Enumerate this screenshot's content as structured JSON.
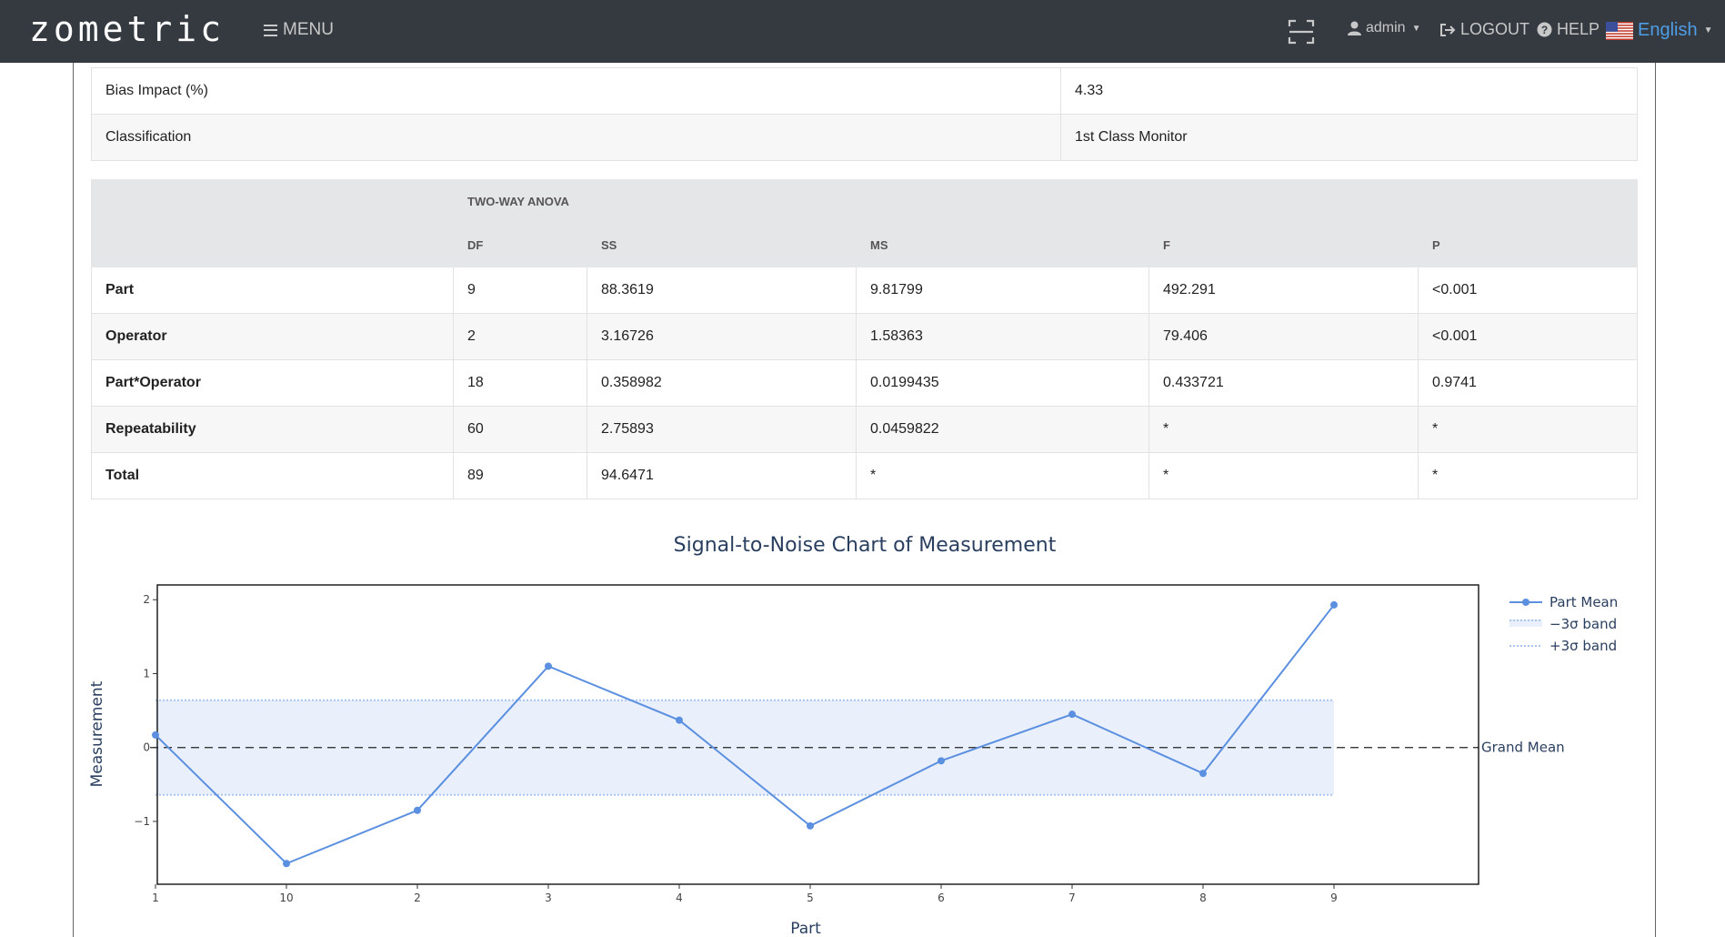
{
  "navbar": {
    "brand": "zometric",
    "menu_label": "MENU",
    "user_label": "admin",
    "logout_label": "LOGOUT",
    "help_label": "HELP",
    "language_label": "English"
  },
  "summary_rows": [
    {
      "label": "Bias Impact (%)",
      "value": "4.33"
    },
    {
      "label": "Classification",
      "value": "1st Class Monitor"
    }
  ],
  "anova": {
    "title": "TWO-WAY ANOVA",
    "columns": [
      "DF",
      "SS",
      "MS",
      "F",
      "P"
    ],
    "rows": [
      {
        "source": "Part",
        "df": "9",
        "ss": "88.3619",
        "ms": "9.81799",
        "f": "492.291",
        "p": "<0.001"
      },
      {
        "source": "Operator",
        "df": "2",
        "ss": "3.16726",
        "ms": "1.58363",
        "f": "79.406",
        "p": "<0.001"
      },
      {
        "source": "Part*Operator",
        "df": "18",
        "ss": "0.358982",
        "ms": "0.0199435",
        "f": "0.433721",
        "p": "0.9741"
      },
      {
        "source": "Repeatability",
        "df": "60",
        "ss": "2.75893",
        "ms": "0.0459822",
        "f": "*",
        "p": "*"
      },
      {
        "source": "Total",
        "df": "89",
        "ss": "94.6471",
        "ms": "*",
        "f": "*",
        "p": "*"
      }
    ]
  },
  "chart_data": {
    "type": "line",
    "title": "Signal-to-Noise Chart of Measurement",
    "xlabel": "Part",
    "ylabel": "Measurement",
    "categories": [
      "1",
      "10",
      "2",
      "3",
      "4",
      "5",
      "6",
      "7",
      "8",
      "9"
    ],
    "series": [
      {
        "name": "Part Mean",
        "values": [
          0.17,
          -1.57,
          -0.85,
          1.1,
          0.37,
          -1.06,
          -0.18,
          0.45,
          -0.35,
          1.93
        ],
        "color": "#5b8fe0"
      }
    ],
    "band": {
      "lower": -0.64,
      "upper": 0.64,
      "lower_name": "−3σ band",
      "upper_name": "+3σ band",
      "fill": "#e9f0fc",
      "line_color": "#a9c4ee"
    },
    "reference_line": {
      "name": "Grand Mean",
      "value": 0,
      "color": "#222222"
    },
    "yticks": [
      "−1",
      "0",
      "1",
      "2"
    ],
    "ytick_values": [
      -1,
      0,
      1,
      2
    ],
    "ylim": [
      -1.85,
      2.2
    ],
    "grid": false,
    "legend": "top-right"
  }
}
